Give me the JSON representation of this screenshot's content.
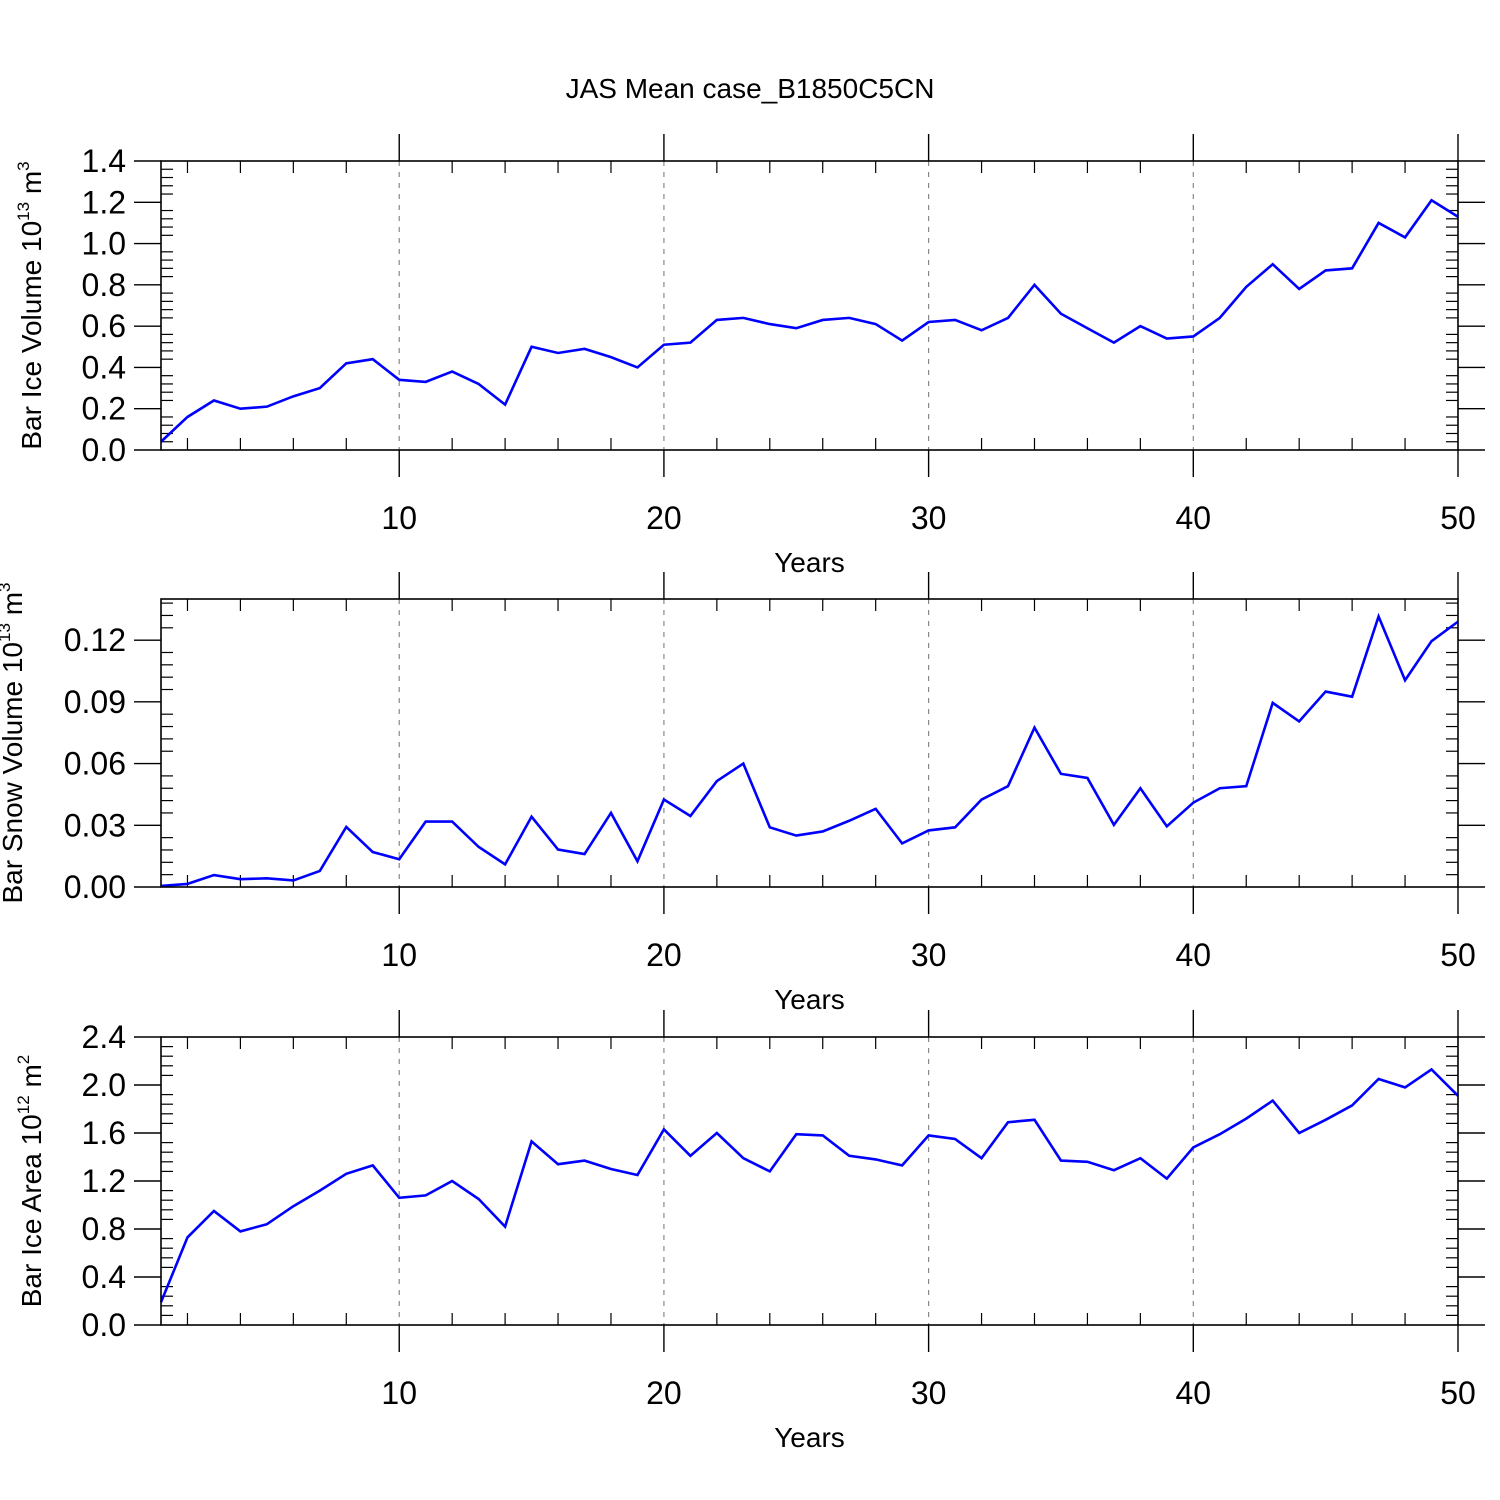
{
  "figure": {
    "title": "JAS Mean case_B1850C5CN",
    "colors": {
      "line": "#0000ff",
      "axis": "#000000",
      "grid": "#888888"
    }
  },
  "chart_data": [
    {
      "type": "line",
      "title": "JAS Mean case_B1850C5CN",
      "xlabel": "Years",
      "ylabel": {
        "prefix": "Bar Ice Volume 10",
        "exp": "13",
        "unit": " m",
        "unit_exp": "3"
      },
      "xlim": [
        1,
        50
      ],
      "ylim": [
        0,
        1.4
      ],
      "xticks": [
        10,
        20,
        30,
        40,
        50
      ],
      "yticks": [
        "0.0",
        "0.2",
        "0.4",
        "0.6",
        "0.8",
        "1.0",
        "1.2",
        "1.4"
      ],
      "ytick_values": [
        0,
        0.2,
        0.4,
        0.6,
        0.8,
        1.0,
        1.2,
        1.4
      ],
      "grid_x": [
        10,
        20,
        30,
        40
      ],
      "series": [
        {
          "name": "Bar Ice Volume",
          "x": [
            1,
            2,
            3,
            4,
            5,
            6,
            7,
            8,
            9,
            10,
            11,
            12,
            13,
            14,
            15,
            16,
            17,
            18,
            19,
            20,
            21,
            22,
            23,
            24,
            25,
            26,
            27,
            28,
            29,
            30,
            31,
            32,
            33,
            34,
            35,
            36,
            37,
            38,
            39,
            40,
            41,
            42,
            43,
            44,
            45,
            46,
            47,
            48,
            49,
            50
          ],
          "values": [
            0.04,
            0.16,
            0.24,
            0.2,
            0.21,
            0.26,
            0.3,
            0.42,
            0.44,
            0.34,
            0.33,
            0.38,
            0.32,
            0.22,
            0.5,
            0.47,
            0.49,
            0.45,
            0.4,
            0.51,
            0.52,
            0.63,
            0.64,
            0.61,
            0.59,
            0.63,
            0.64,
            0.61,
            0.53,
            0.62,
            0.63,
            0.58,
            0.64,
            0.8,
            0.66,
            0.59,
            0.52,
            0.6,
            0.54,
            0.55,
            0.64,
            0.79,
            0.9,
            0.78,
            0.87,
            0.88,
            1.1,
            1.03,
            1.21,
            1.13
          ]
        }
      ]
    },
    {
      "type": "line",
      "xlabel": "Years",
      "ylabel": {
        "prefix": "Bar Snow Volume 10",
        "exp": "13",
        "unit": " m",
        "unit_exp": "3"
      },
      "xlim": [
        1,
        50
      ],
      "ylim": [
        0,
        0.14
      ],
      "xticks": [
        10,
        20,
        30,
        40,
        50
      ],
      "yticks": [
        "0.00",
        "0.03",
        "0.06",
        "0.09",
        "0.12"
      ],
      "ytick_values": [
        0,
        0.03,
        0.06,
        0.09,
        0.12
      ],
      "grid_x": [
        10,
        20,
        30,
        40
      ],
      "series": [
        {
          "name": "Bar Snow Volume",
          "x": [
            1,
            2,
            3,
            4,
            5,
            6,
            7,
            8,
            9,
            10,
            11,
            12,
            13,
            14,
            15,
            16,
            17,
            18,
            19,
            20,
            21,
            22,
            23,
            24,
            25,
            26,
            27,
            28,
            29,
            30,
            31,
            32,
            33,
            34,
            35,
            36,
            37,
            38,
            39,
            40,
            41,
            42,
            43,
            44,
            45,
            46,
            47,
            48,
            49,
            50
          ],
          "values": [
            0.0005,
            0.0015,
            0.0058,
            0.0038,
            0.0042,
            0.0032,
            0.0078,
            0.0292,
            0.017,
            0.0135,
            0.0318,
            0.0318,
            0.0195,
            0.011,
            0.0342,
            0.0182,
            0.016,
            0.036,
            0.0125,
            0.0425,
            0.0345,
            0.0515,
            0.06,
            0.029,
            0.025,
            0.027,
            0.0322,
            0.038,
            0.0212,
            0.0275,
            0.029,
            0.0425,
            0.049,
            0.0775,
            0.055,
            0.053,
            0.0302,
            0.048,
            0.0295,
            0.041,
            0.048,
            0.049,
            0.0895,
            0.0805,
            0.095,
            0.0925,
            0.1315,
            0.1005,
            0.1195,
            0.129
          ]
        }
      ]
    },
    {
      "type": "line",
      "xlabel": "Years",
      "ylabel": {
        "prefix": "Bar Ice Area 10",
        "exp": "12",
        "unit": " m",
        "unit_exp": "2"
      },
      "xlim": [
        1,
        50
      ],
      "ylim": [
        0,
        2.4
      ],
      "xticks": [
        10,
        20,
        30,
        40,
        50
      ],
      "yticks": [
        "0.0",
        "0.4",
        "0.8",
        "1.2",
        "1.6",
        "2.0",
        "2.4"
      ],
      "ytick_values": [
        0,
        0.4,
        0.8,
        1.2,
        1.6,
        2.0,
        2.4
      ],
      "grid_x": [
        10,
        20,
        30,
        40
      ],
      "series": [
        {
          "name": "Bar Ice Area",
          "x": [
            1,
            2,
            3,
            4,
            5,
            6,
            7,
            8,
            9,
            10,
            11,
            12,
            13,
            14,
            15,
            16,
            17,
            18,
            19,
            20,
            21,
            22,
            23,
            24,
            25,
            26,
            27,
            28,
            29,
            30,
            31,
            32,
            33,
            34,
            35,
            36,
            37,
            38,
            39,
            40,
            41,
            42,
            43,
            44,
            45,
            46,
            47,
            48,
            49,
            50
          ],
          "values": [
            0.19,
            0.73,
            0.95,
            0.78,
            0.84,
            0.99,
            1.12,
            1.26,
            1.33,
            1.06,
            1.08,
            1.2,
            1.05,
            0.82,
            1.53,
            1.34,
            1.37,
            1.3,
            1.25,
            1.63,
            1.41,
            1.6,
            1.39,
            1.28,
            1.59,
            1.58,
            1.41,
            1.38,
            1.33,
            1.58,
            1.55,
            1.39,
            1.69,
            1.71,
            1.37,
            1.36,
            1.29,
            1.39,
            1.22,
            1.48,
            1.59,
            1.72,
            1.87,
            1.6,
            1.71,
            1.83,
            2.05,
            1.98,
            2.13,
            1.91
          ]
        }
      ]
    }
  ]
}
